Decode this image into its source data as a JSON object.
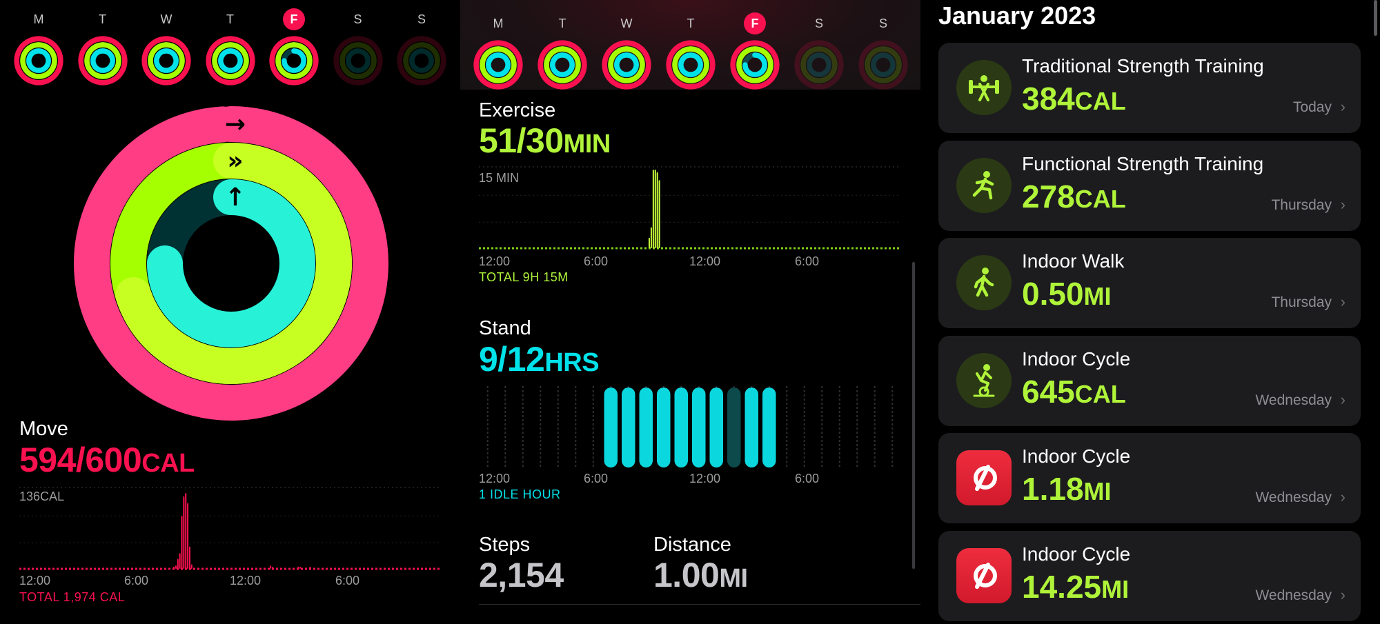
{
  "week": {
    "days": [
      {
        "letter": "M",
        "move": 1.0,
        "exercise": 1.0,
        "stand": 1.0,
        "today": false
      },
      {
        "letter": "T",
        "move": 1.0,
        "exercise": 1.0,
        "stand": 1.0,
        "today": false
      },
      {
        "letter": "W",
        "move": 1.0,
        "exercise": 1.0,
        "stand": 1.0,
        "today": false
      },
      {
        "letter": "T",
        "move": 1.0,
        "exercise": 1.0,
        "stand": 1.0,
        "today": false
      },
      {
        "letter": "F",
        "move": 0.99,
        "exercise": 1.0,
        "stand": 0.75,
        "today": true
      },
      {
        "letter": "S",
        "move": 0,
        "exercise": 0,
        "stand": 0,
        "today": false
      },
      {
        "letter": "S",
        "move": 0,
        "exercise": 0,
        "stand": 0,
        "today": false
      }
    ]
  },
  "colors": {
    "move": "#fa114f",
    "exercise": "#a6ff00",
    "stand": "#00e2e9",
    "workout_accent": "#b0f43a",
    "muted": "#9c9c9c"
  },
  "rings": {
    "move_fraction": 0.99,
    "exercise_fraction": 1.7,
    "stand_fraction": 0.75
  },
  "move": {
    "label": "Move",
    "value": "594/600",
    "unit": "CAL",
    "chart_max_label": "136CAL",
    "axis": [
      "12:00",
      "6:00",
      "12:00",
      "6:00"
    ],
    "total": "TOTAL 1,974 CAL"
  },
  "exercise": {
    "label": "Exercise",
    "value": "51/30",
    "unit": "MIN",
    "chart_max_label": "15 MIN",
    "axis": [
      "12:00",
      "6:00",
      "12:00",
      "6:00"
    ],
    "total": "TOTAL 9H 15M"
  },
  "stand": {
    "label": "Stand",
    "value": "9/12",
    "unit": "HRS",
    "axis": [
      "12:00",
      "6:00",
      "12:00",
      "6:00"
    ],
    "idle": "1 IDLE HOUR"
  },
  "steps": {
    "label": "Steps",
    "value": "2,154"
  },
  "distance": {
    "label": "Distance",
    "value": "1.00",
    "unit": "MI"
  },
  "workouts": {
    "month": "January 2023",
    "items": [
      {
        "name": "Traditional Strength Training",
        "value": "384",
        "unit": "CAL",
        "day": "Today",
        "icon": "strength-training-icon"
      },
      {
        "name": "Functional Strength Training",
        "value": "278",
        "unit": "CAL",
        "day": "Thursday",
        "icon": "functional-training-icon"
      },
      {
        "name": "Indoor Walk",
        "value": "0.50",
        "unit": "MI",
        "day": "Thursday",
        "icon": "walk-icon"
      },
      {
        "name": "Indoor Cycle",
        "value": "645",
        "unit": "CAL",
        "day": "Wednesday",
        "icon": "cycle-icon"
      },
      {
        "name": "Indoor Cycle",
        "value": "1.18",
        "unit": "MI",
        "day": "Wednesday",
        "icon": "peloton-icon"
      },
      {
        "name": "Indoor Cycle",
        "value": "14.25",
        "unit": "MI",
        "day": "Wednesday",
        "icon": "peloton-icon"
      }
    ]
  },
  "chart_data": [
    {
      "type": "bar",
      "title": "Move",
      "ylabel": "CAL",
      "ymax": 136,
      "x": [
        "12:00",
        "6:00",
        "12:00",
        "6:00"
      ],
      "hourly_values": [
        0,
        0,
        0,
        0,
        0,
        0,
        0,
        0,
        0,
        0,
        0,
        0,
        0,
        0,
        0,
        0,
        0,
        0,
        0,
        0,
        0,
        0,
        0,
        0,
        0,
        0,
        0,
        0,
        0,
        0,
        0,
        0,
        0,
        0,
        0,
        0,
        0,
        0,
        0,
        0,
        0,
        0,
        0,
        0,
        0,
        0,
        0,
        0,
        0,
        0,
        0,
        0,
        0,
        0,
        0,
        0,
        0,
        0,
        0,
        0,
        0,
        0,
        0,
        0,
        0,
        0,
        0,
        0,
        0,
        0,
        0,
        0,
        0,
        0,
        0,
        0,
        0,
        0,
        4,
        6,
        18,
        28,
        95,
        130,
        136,
        118,
        40,
        8,
        0,
        0,
        0,
        0,
        0,
        0,
        0,
        0,
        0,
        0,
        0,
        0,
        0,
        0,
        0,
        0,
        0,
        0,
        0,
        0,
        0,
        0,
        0,
        0,
        0,
        0,
        0,
        0,
        0,
        0,
        0,
        0,
        0,
        0,
        0,
        0,
        0,
        0,
        0,
        6,
        2,
        0,
        0,
        0,
        0,
        0,
        0,
        0,
        0,
        0,
        0,
        0,
        0,
        4,
        2,
        0,
        0,
        0,
        0,
        4,
        0,
        0,
        0,
        0,
        0,
        0,
        0,
        0,
        0,
        0,
        0,
        0,
        0,
        0,
        0,
        0,
        0,
        0,
        0,
        0,
        0,
        0,
        0,
        0,
        0,
        0,
        0,
        0,
        0,
        0,
        0,
        0,
        0,
        0,
        0,
        0,
        0,
        0,
        0,
        0,
        0,
        0,
        0,
        0,
        0,
        0,
        0,
        0,
        0,
        0,
        0,
        0,
        0,
        0,
        0,
        0,
        0,
        0,
        0,
        0,
        0,
        0,
        0,
        0,
        0,
        0
      ]
    },
    {
      "type": "bar",
      "title": "Exercise",
      "ylabel": "MIN",
      "ymax": 15,
      "x": [
        "12:00",
        "6:00",
        "12:00",
        "6:00"
      ],
      "hourly_values": [
        0,
        0,
        0,
        0,
        0,
        0,
        0,
        0,
        0,
        0,
        0,
        0,
        0,
        0,
        0,
        0,
        0,
        0,
        0,
        0,
        0,
        0,
        0,
        0,
        0,
        0,
        0,
        0,
        0,
        0,
        0,
        0,
        0,
        0,
        0,
        0,
        0,
        0,
        0,
        0,
        0,
        0,
        0,
        0,
        0,
        0,
        0,
        0,
        0,
        0,
        0,
        0,
        0,
        0,
        0,
        0,
        0,
        0,
        0,
        0,
        0,
        0,
        0,
        0,
        0,
        0,
        0,
        0,
        0,
        0,
        0,
        0,
        0,
        0,
        0,
        0,
        0,
        0,
        0,
        0,
        0,
        0,
        0,
        0,
        2,
        4,
        15,
        15,
        14.5,
        13,
        0,
        0,
        0,
        0,
        0,
        0,
        0,
        0,
        0,
        0,
        0,
        0,
        0,
        0,
        0,
        0,
        0,
        0,
        0,
        0,
        0,
        0,
        0,
        0,
        0,
        0,
        0,
        0,
        0,
        0,
        0,
        0,
        0,
        0,
        0,
        0,
        0,
        0,
        0,
        0,
        0,
        0,
        0,
        0,
        0,
        0,
        0,
        0,
        0,
        0,
        0,
        0,
        0,
        0,
        0,
        0,
        0,
        0,
        0,
        0,
        0,
        0,
        0,
        0,
        0,
        0,
        0,
        0,
        0,
        0,
        0,
        0,
        0,
        0,
        0,
        0,
        0,
        0,
        0,
        0,
        0,
        0,
        0,
        0,
        0,
        0,
        0,
        0,
        0,
        0,
        0,
        0,
        0,
        0,
        0,
        0,
        0,
        0,
        0,
        0,
        0,
        0,
        0,
        0,
        0,
        0,
        0,
        0,
        0,
        0,
        0,
        0,
        0,
        0,
        0,
        0,
        0,
        0,
        0
      ]
    },
    {
      "type": "bar",
      "title": "Stand",
      "ylabel": "HRS",
      "x": [
        "12:00",
        "6:00",
        "12:00",
        "6:00"
      ],
      "hourly_values": [
        0,
        0,
        0,
        0,
        0,
        0,
        0,
        1,
        1,
        1,
        1,
        1,
        1,
        1,
        0,
        1,
        1,
        0,
        0,
        0,
        0,
        0,
        0,
        0
      ]
    }
  ]
}
